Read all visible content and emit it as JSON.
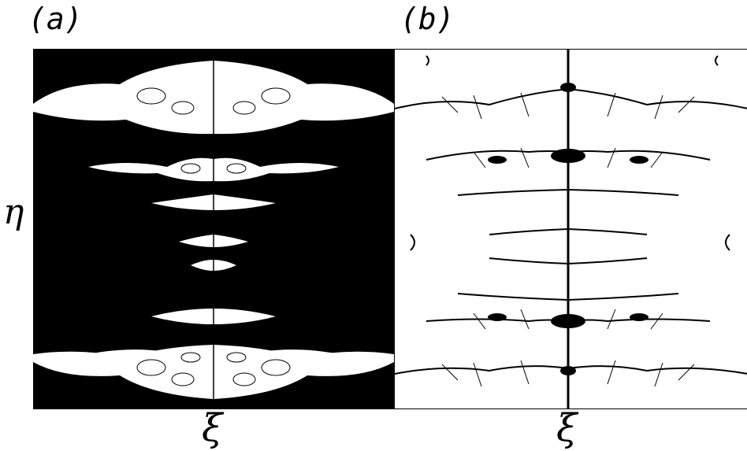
{
  "panels": [
    {
      "id": "a",
      "label": "(a)",
      "fill": "#000000",
      "background": "#ffffff"
    },
    {
      "id": "b",
      "label": "(b)",
      "fill": "#000000",
      "background": "#ffffff"
    }
  ],
  "axes": {
    "y_label": "η",
    "x_label_a": "ξ",
    "x_label_b": "ξ"
  }
}
